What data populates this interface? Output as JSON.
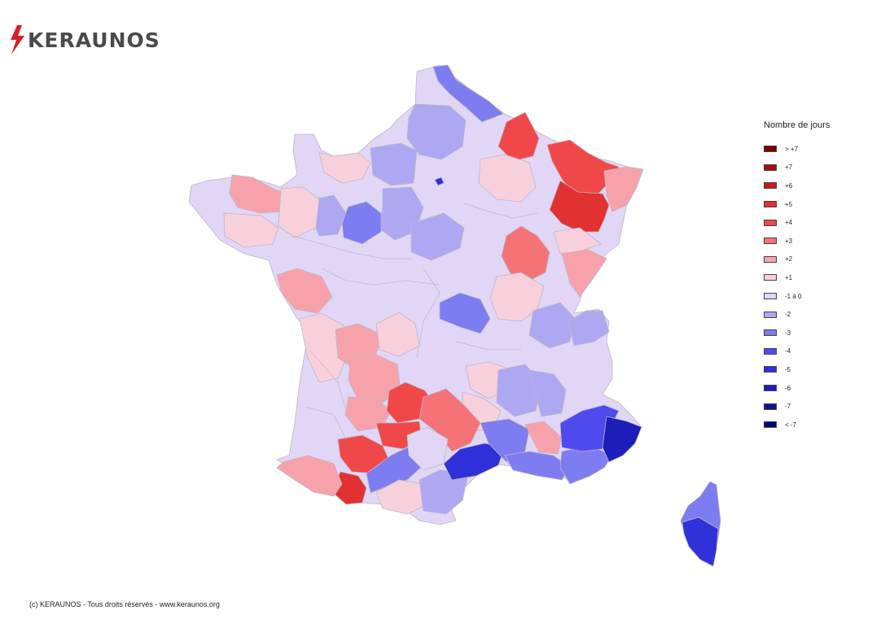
{
  "brand": {
    "name": "KERAUNOS",
    "color": "#d62027",
    "text_color": "#4a4a4a"
  },
  "legend": {
    "title": "Nombre de jours",
    "items": [
      {
        "label": "> +7",
        "color": "#7a0000"
      },
      {
        "label": "+7",
        "color": "#a80e0e"
      },
      {
        "label": "+6",
        "color": "#c91a1a"
      },
      {
        "label": "+5",
        "color": "#e23131"
      },
      {
        "label": "+4",
        "color": "#f04848"
      },
      {
        "label": "+3",
        "color": "#f57277"
      },
      {
        "label": "+2",
        "color": "#f7a2ab"
      },
      {
        "label": "+1",
        "color": "#f8d0dc"
      },
      {
        "label": "-1 à 0",
        "color": "#e1d6f5"
      },
      {
        "label": "-2",
        "color": "#aea8f2"
      },
      {
        "label": "-3",
        "color": "#7d7cf0"
      },
      {
        "label": "-4",
        "color": "#4f4aee"
      },
      {
        "label": "-5",
        "color": "#3030d8"
      },
      {
        "label": "-6",
        "color": "#1d1dba"
      },
      {
        "label": "-7",
        "color": "#10109a"
      },
      {
        "label": "< -7",
        "color": "#060673"
      }
    ]
  },
  "map": {
    "region": "France",
    "base_color": "#e1d6f5",
    "border_color": "#bdb6c8",
    "highlighted_zones": [
      {
        "area": "Ardennes",
        "category": "+4"
      },
      {
        "area": "Moselle",
        "category": "+4"
      },
      {
        "area": "Bas-Rhin",
        "category": "+5"
      },
      {
        "area": "Vosges",
        "category": "+4"
      },
      {
        "area": "Haut-Rhin",
        "category": "+2"
      },
      {
        "area": "Côte-d'Or",
        "category": "+3"
      },
      {
        "area": "Doubs",
        "category": "+2"
      },
      {
        "area": "Nord",
        "category": "-3"
      },
      {
        "area": "Sarthe",
        "category": "-3"
      },
      {
        "area": "Allier",
        "category": "-3"
      },
      {
        "area": "Côtes-d'Armor",
        "category": "+2"
      },
      {
        "area": "Vendée",
        "category": "+2"
      },
      {
        "area": "Haute-Vienne",
        "category": "+2"
      },
      {
        "area": "Corrèze",
        "category": "+2"
      },
      {
        "area": "Lot",
        "category": "+4"
      },
      {
        "area": "Aveyron",
        "category": "+3"
      },
      {
        "area": "Tarn-et-Garonne",
        "category": "+4"
      },
      {
        "area": "Gers",
        "category": "+4"
      },
      {
        "area": "Hautes-Pyrénées",
        "category": "+5"
      },
      {
        "area": "Pyrénées-Atlantiques",
        "category": "+2"
      },
      {
        "area": "Hérault",
        "category": "-5"
      },
      {
        "area": "Gard",
        "category": "-3"
      },
      {
        "area": "Vaucluse",
        "category": "+2"
      },
      {
        "area": "Var",
        "category": "-3"
      },
      {
        "area": "Alpes-de-Haute-Provence",
        "category": "-4"
      },
      {
        "area": "Alpes-Maritimes",
        "category": "-6"
      },
      {
        "area": "Haute-Corse",
        "category": "-3"
      },
      {
        "area": "Corse-du-Sud",
        "category": "-5"
      },
      {
        "area": "Paris",
        "category": "-5"
      }
    ]
  },
  "footer": {
    "text": "(c) KERAUNOS - Tous droits réservés - www.keraunos.org"
  }
}
